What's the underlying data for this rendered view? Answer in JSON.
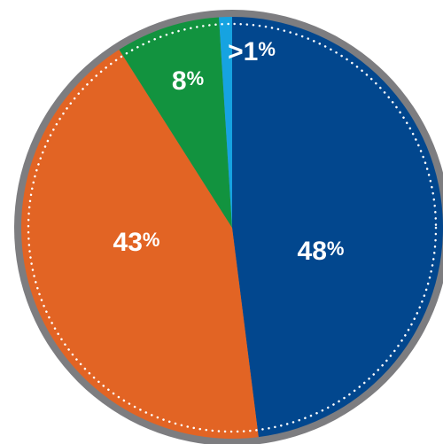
{
  "chart_data": {
    "type": "pie",
    "slices": [
      {
        "label": "48%",
        "value": 48,
        "color": "#02478e"
      },
      {
        "label": "43%",
        "value": 43,
        "color": "#e26424"
      },
      {
        "label": "8%",
        "value": 8,
        "color": "#12933f"
      },
      {
        "label": ">1%",
        "value": 1,
        "color": "#16a3e1"
      }
    ],
    "rim_color": "#7d7d80",
    "title": "",
    "legend": "none"
  }
}
